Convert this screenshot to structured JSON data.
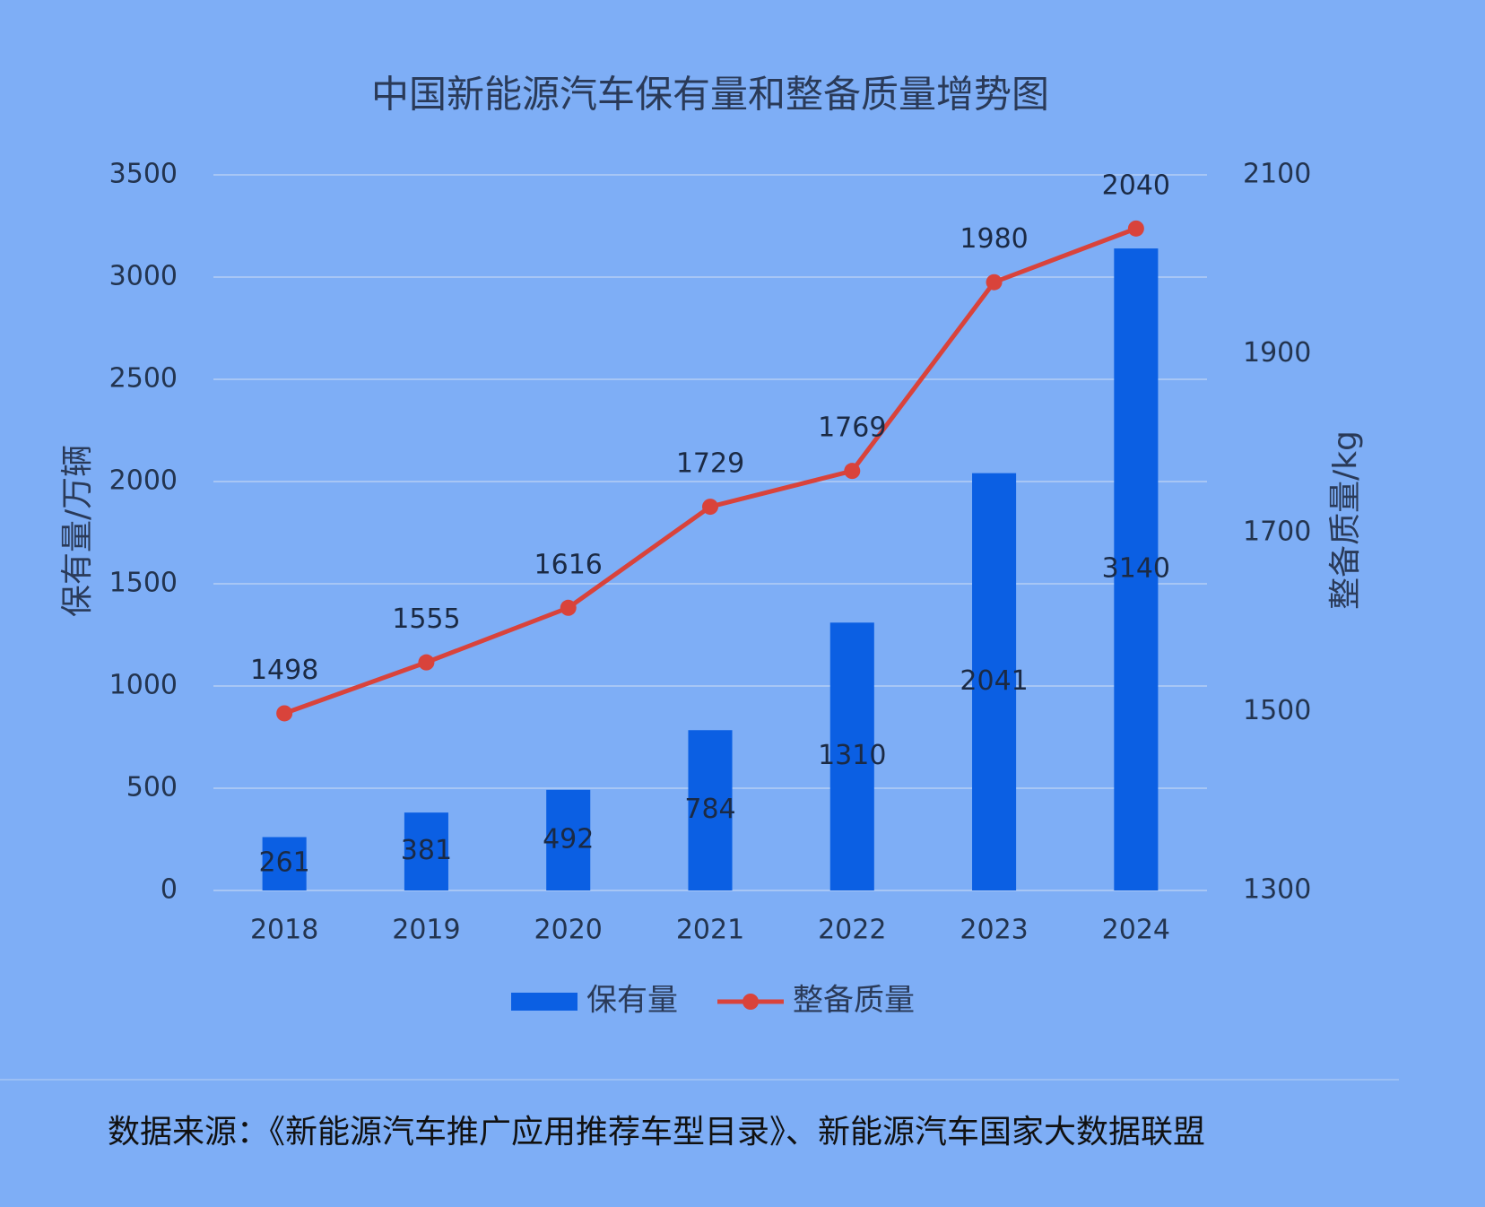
{
  "chart_data": {
    "type": "bar",
    "title": "中国新能源汽车保有量和整备质量增势图",
    "y_label": "保有量/万辆",
    "y2_label": "整备质量/kg",
    "source": "数据来源：《新能源汽车推广应用推荐车型目录》、新能源汽车国家大数据联盟",
    "categories": [
      "2018",
      "2019",
      "2020",
      "2021",
      "2022",
      "2023",
      "2024"
    ],
    "series": [
      {
        "name": "保有量",
        "type": "bar",
        "color": "#0b5fe3",
        "values": [
          261,
          381,
          492,
          784,
          1310,
          2041,
          3140
        ]
      },
      {
        "name": "整备质量",
        "type": "line",
        "axis": "y2",
        "color": "#d9433b",
        "values": [
          1498,
          1555,
          1616,
          1729,
          1769,
          1980,
          2040
        ]
      }
    ],
    "ylim": [
      0,
      3500
    ],
    "yticks": [
      0,
      500,
      1000,
      1500,
      2000,
      2500,
      3000,
      3500
    ],
    "y2lim": [
      1300,
      2100
    ],
    "y2ticks": [
      1300,
      1500,
      1700,
      1900,
      2100
    ],
    "grid": true,
    "legend": "bottom"
  }
}
